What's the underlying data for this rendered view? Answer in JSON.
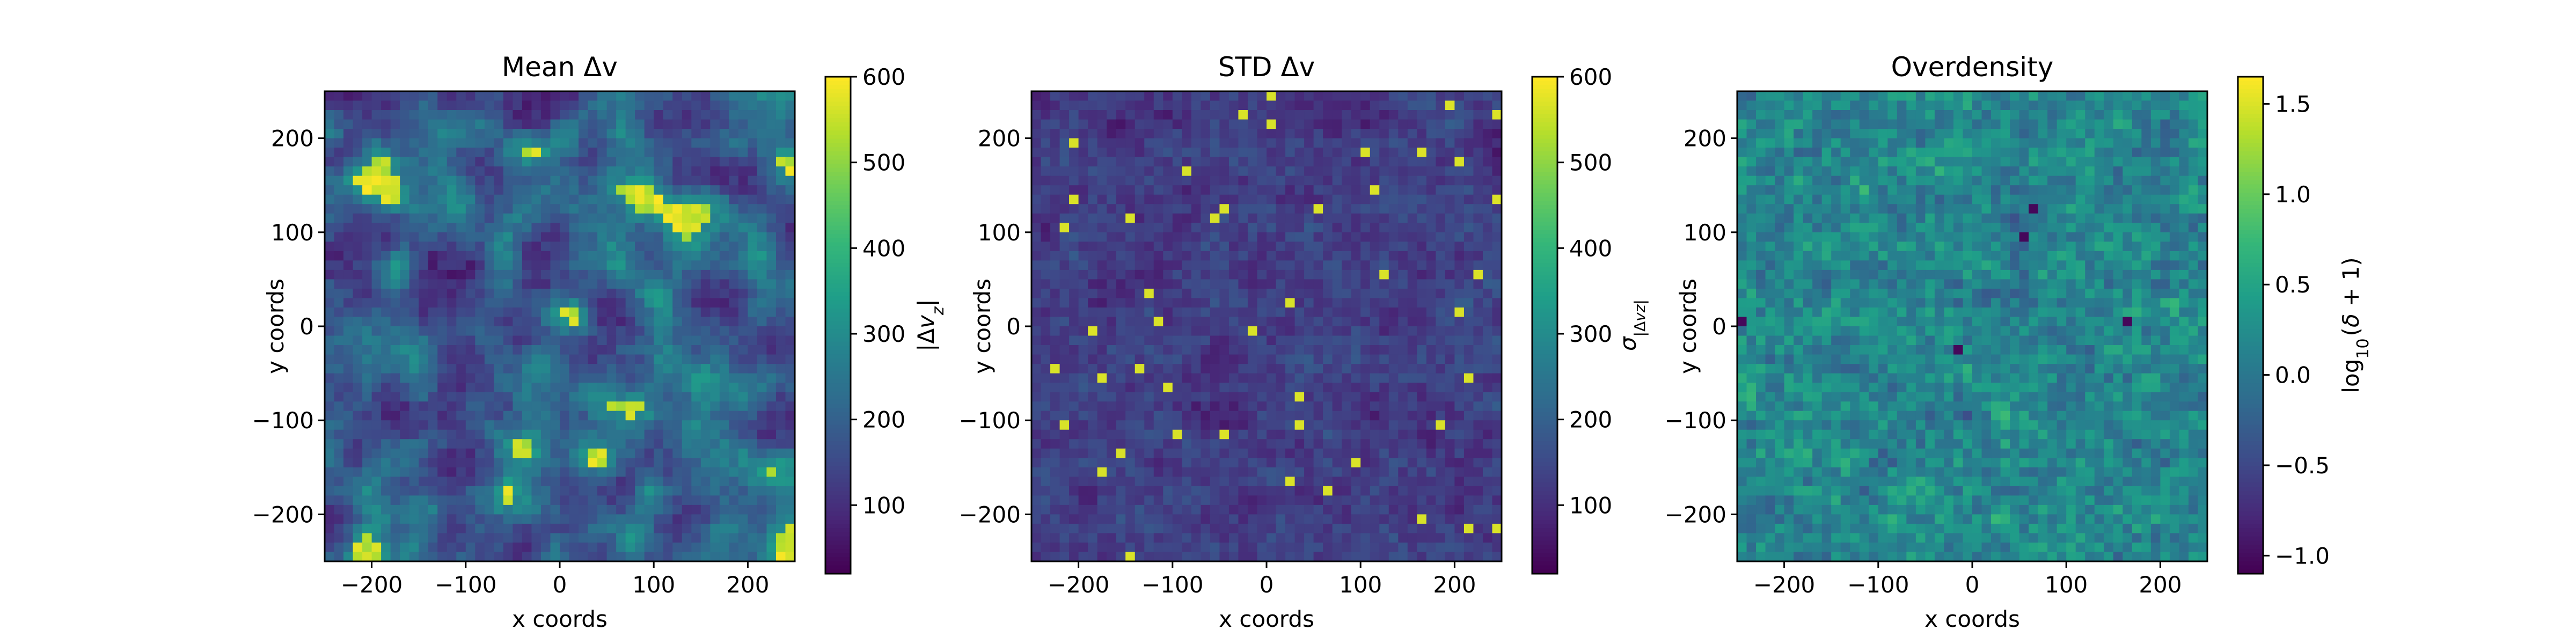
{
  "chart_data": [
    {
      "type": "heatmap",
      "title": "Mean Δv",
      "xlabel": "x coords",
      "ylabel": "y coords",
      "xlim": [
        -250,
        250
      ],
      "ylim": [
        -250,
        250
      ],
      "xticks": [
        -200,
        -100,
        0,
        100,
        200
      ],
      "yticks": [
        -200,
        -100,
        0,
        100,
        200
      ],
      "xtick_labels": [
        "−200",
        "−100",
        "0",
        "100",
        "200"
      ],
      "ytick_labels": [
        "−200",
        "−100",
        "0",
        "100",
        "200"
      ],
      "grid_shape": [
        50,
        50
      ],
      "colormap": "viridis",
      "colorbar": {
        "label": "|Δv_z|",
        "range": [
          20,
          600
        ],
        "ticks": [
          100,
          200,
          300,
          400,
          500,
          600
        ],
        "tick_labels": [
          "100",
          "200",
          "300",
          "400",
          "500",
          "600"
        ]
      },
      "value_summary": {
        "typical": 220,
        "max": 600
      }
    },
    {
      "type": "heatmap",
      "title": "STD Δv",
      "xlabel": "x coords",
      "ylabel": "y coords",
      "xlim": [
        -250,
        250
      ],
      "ylim": [
        -250,
        250
      ],
      "xticks": [
        -200,
        -100,
        0,
        100,
        200
      ],
      "yticks": [
        -200,
        -100,
        0,
        100,
        200
      ],
      "xtick_labels": [
        "−200",
        "−100",
        "0",
        "100",
        "200"
      ],
      "ytick_labels": [
        "−200",
        "−100",
        "0",
        "100",
        "200"
      ],
      "grid_shape": [
        50,
        50
      ],
      "colormap": "viridis",
      "colorbar": {
        "label": "σ_|Δvz|",
        "range": [
          20,
          600
        ],
        "ticks": [
          100,
          200,
          300,
          400,
          500,
          600
        ],
        "tick_labels": [
          "100",
          "200",
          "300",
          "400",
          "500",
          "600"
        ]
      },
      "value_summary": {
        "typical": 120,
        "max": 600
      }
    },
    {
      "type": "heatmap",
      "title": "Overdensity",
      "xlabel": "x coords",
      "ylabel": "y coords",
      "xlim": [
        -250,
        250
      ],
      "ylim": [
        -250,
        250
      ],
      "xticks": [
        -200,
        -100,
        0,
        100,
        200
      ],
      "yticks": [
        -200,
        -100,
        0,
        100,
        200
      ],
      "xtick_labels": [
        "−200",
        "−100",
        "0",
        "100",
        "200"
      ],
      "ytick_labels": [
        "−200",
        "−100",
        "0",
        "100",
        "200"
      ],
      "grid_shape": [
        50,
        50
      ],
      "colormap": "viridis",
      "colorbar": {
        "label": "log10(δ+1)",
        "range": [
          -1.1,
          1.65
        ],
        "ticks": [
          -1.0,
          -0.5,
          0.0,
          0.5,
          1.0,
          1.5
        ],
        "tick_labels": [
          "−1.0",
          "−0.5",
          "0.0",
          "0.5",
          "1.0",
          "1.5"
        ]
      },
      "value_summary": {
        "typical": 0.3,
        "max": 1.65
      }
    }
  ]
}
